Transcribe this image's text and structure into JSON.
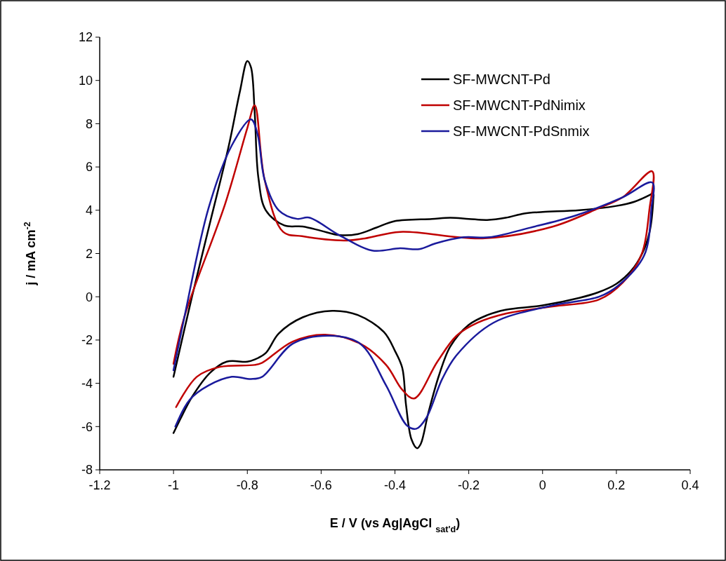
{
  "chart_data": {
    "type": "line",
    "xlabel": "E / V (vs Ag|AgCl $_{sat'd}$)",
    "ylabel": "j / mA cm$^{-2}$",
    "xlim": [
      -1.2,
      0.4
    ],
    "ylim": [
      -8,
      12
    ],
    "xticks": [
      -1.2,
      -1,
      -0.8,
      -0.6,
      -0.4,
      -0.2,
      0,
      0.2,
      0.4
    ],
    "yticks": [
      -8,
      -6,
      -4,
      -2,
      0,
      2,
      4,
      6,
      8,
      10,
      12
    ],
    "grid": false,
    "legend": "top right",
    "marker": "none",
    "line_style": "solid",
    "series": [
      {
        "name": "SF-MWCNT-Pd",
        "color": "#000000",
        "x": [
          -1,
          -0.95,
          -0.9,
          -0.85,
          -0.82,
          -0.8,
          -0.79,
          -0.78,
          -0.77,
          -0.75,
          -0.7,
          -0.65,
          -0.6,
          -0.55,
          -0.5,
          -0.45,
          -0.4,
          -0.3,
          -0.25,
          -0.2,
          -0.15,
          -0.1,
          -0.05,
          0,
          0.1,
          0.2,
          0.25,
          0.29,
          0.3,
          0.3,
          0.29,
          0.27,
          0.24,
          0.2,
          0.15,
          0.1,
          0,
          -0.1,
          -0.15,
          -0.2,
          -0.25,
          -0.28,
          -0.31,
          -0.33,
          -0.34,
          -0.355,
          -0.37,
          -0.38,
          -0.4,
          -0.43,
          -0.5,
          -0.57,
          -0.65,
          -0.715,
          -0.75,
          -0.78,
          -0.8,
          -0.856,
          -0.9,
          -0.951,
          -0.98,
          -1
        ],
        "values": [
          -3.7,
          0,
          3.5,
          7,
          9.5,
          10.9,
          10.6,
          8.5,
          5.5,
          4,
          3.3,
          3.25,
          3.05,
          2.85,
          2.9,
          3.2,
          3.5,
          3.6,
          3.65,
          3.6,
          3.55,
          3.65,
          3.85,
          3.92,
          4,
          4.2,
          4.4,
          4.7,
          4.8,
          4.5,
          3,
          2,
          1.2,
          0.6,
          0.2,
          -0.05,
          -0.4,
          -0.6,
          -0.85,
          -1.3,
          -2.3,
          -3.6,
          -5.4,
          -6.8,
          -7,
          -6.6,
          -5,
          -3.3,
          -2.5,
          -1.63,
          -0.85,
          -0.65,
          -0.95,
          -1.7,
          -2.6,
          -2.9,
          -3,
          -3,
          -3.5,
          -4.66,
          -5.6,
          -6.3
        ]
      },
      {
        "name": "SF-MWCNT-PdNimix",
        "color": "#c00000",
        "x": [
          -1,
          -0.97,
          -0.86,
          -0.8,
          -0.78,
          -0.753,
          -0.703,
          -0.652,
          -0.538,
          -0.481,
          -0.386,
          -0.163,
          0.027,
          0.153,
          0.217,
          0.297,
          0.29,
          0.267,
          0.217,
          0.153,
          0.027,
          -0.1,
          -0.176,
          -0.233,
          -0.285,
          -0.348,
          -0.38,
          -0.424,
          -0.494,
          -0.589,
          -0.677,
          -0.76,
          -0.78,
          -0.874,
          -0.937,
          -0.993
        ],
        "values": [
          -3.1,
          -0.9,
          4.3,
          7.8,
          8.85,
          5.4,
          3,
          2.8,
          2.6,
          2.7,
          3,
          2.7,
          3.24,
          4.1,
          4.6,
          5.8,
          4.1,
          1.9,
          0.65,
          -0.13,
          -0.45,
          -0.78,
          -1.2,
          -1.8,
          -3,
          -4.7,
          -4.3,
          -3.15,
          -2.17,
          -1.75,
          -2.07,
          -3.05,
          -3.15,
          -3.24,
          -3.7,
          -5.1
        ]
      },
      {
        "name": "SF-MWCNT-PdSnmix",
        "color": "#1a1a9c",
        "x": [
          -1,
          -0.97,
          -0.905,
          -0.842,
          -0.79,
          -0.772,
          -0.753,
          -0.715,
          -0.665,
          -0.633,
          -0.551,
          -0.462,
          -0.386,
          -0.334,
          -0.291,
          -0.214,
          -0.144,
          -0.037,
          0.09,
          0.217,
          0.297,
          0.295,
          0.275,
          0.204,
          0.153,
          0.027,
          -0.133,
          -0.233,
          -0.272,
          -0.315,
          -0.342,
          -0.367,
          -0.424,
          -0.494,
          -0.576,
          -0.677,
          -0.76,
          -0.79,
          -0.842,
          -0.905,
          -0.956,
          -0.995
        ],
        "values": [
          -3.4,
          -0.9,
          4.1,
          7,
          8.2,
          7.5,
          5.4,
          4,
          3.6,
          3.66,
          2.85,
          2.14,
          2.24,
          2.2,
          2.46,
          2.75,
          2.75,
          3.18,
          3.76,
          4.6,
          5.28,
          4.1,
          1.9,
          0.5,
          0,
          -0.4,
          -1.2,
          -2.7,
          -3.8,
          -5.6,
          -6.1,
          -5.96,
          -4.1,
          -2.17,
          -1.8,
          -2.17,
          -3.7,
          -3.8,
          -3.7,
          -4.1,
          -4.76,
          -6
        ]
      }
    ]
  }
}
